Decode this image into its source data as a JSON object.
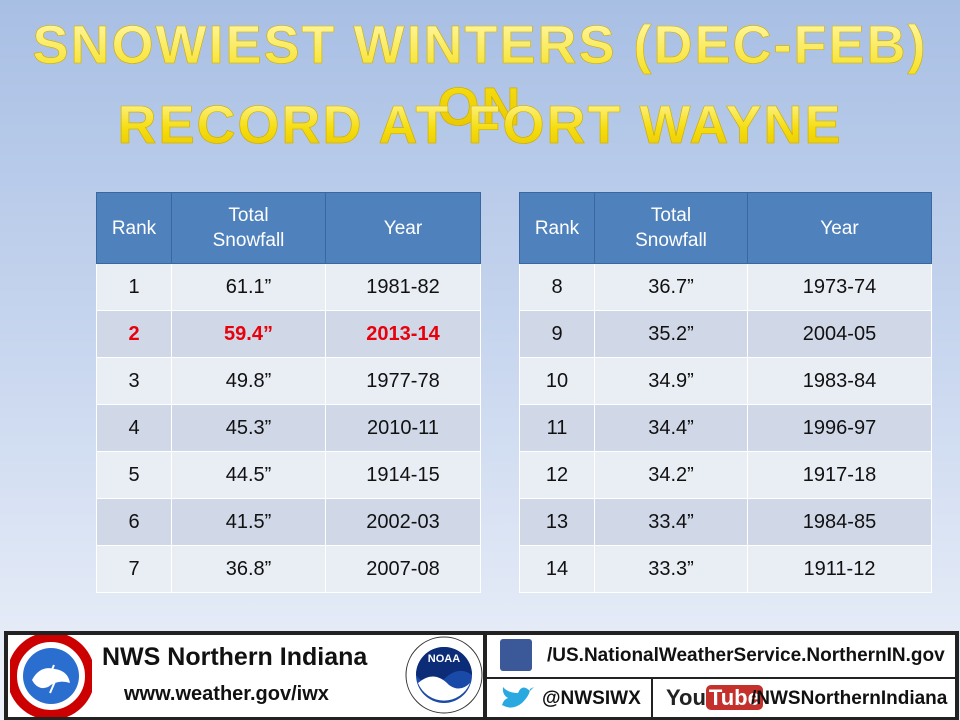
{
  "title": {
    "lines": [
      "SNOWIEST WINTERS (DEC-FEB) ON",
      "RECORD AT FORT WAYNE"
    ]
  },
  "tables": [
    {
      "header": [
        "Rank",
        "Total Snowfall",
        "Year"
      ],
      "rows": [
        [
          "1",
          "61.1”",
          "1981-82"
        ],
        [
          "2",
          "59.4”",
          "2013-14"
        ],
        [
          "3",
          "49.8”",
          "1977-78"
        ],
        [
          "4",
          "45.3”",
          "2010-11"
        ],
        [
          "5",
          "44.5”",
          "1914-15"
        ],
        [
          "6",
          "41.5”",
          "2002-03"
        ],
        [
          "7",
          "36.8”",
          "2007-08"
        ]
      ],
      "highlight_rows": [
        1
      ],
      "highlight_color": "#e8000b"
    },
    {
      "header": [
        "Rank",
        "Total Snowfall",
        "Year"
      ],
      "rows": [
        [
          "8",
          "36.7”",
          "1973-74"
        ],
        [
          "9",
          "35.2”",
          "2004-05"
        ],
        [
          "10",
          "34.9”",
          "1983-84"
        ],
        [
          "11",
          "34.4”",
          "1996-97"
        ],
        [
          "12",
          "34.2”",
          "1917-18"
        ],
        [
          "13",
          "33.4”",
          "1984-85"
        ],
        [
          "14",
          "33.3”",
          "1911-12"
        ]
      ],
      "highlight_rows": [],
      "highlight_color": "#e8000b"
    }
  ],
  "footer": {
    "office": "NWS Northern Indiana",
    "url": "www.weather.gov/iwx",
    "noaa": "NOAA",
    "facebook": "/US.NationalWeatherService.NorthernIN.gov",
    "twitter": "@NWSIWX",
    "youtube_logo": [
      "You",
      "Tube"
    ],
    "youtube": "/NWSNorthernIndiana"
  }
}
